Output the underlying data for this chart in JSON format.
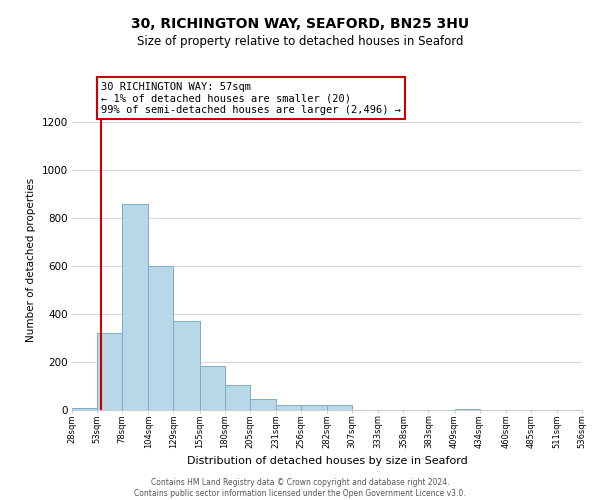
{
  "title": "30, RICHINGTON WAY, SEAFORD, BN25 3HU",
  "subtitle": "Size of property relative to detached houses in Seaford",
  "xlabel": "Distribution of detached houses by size in Seaford",
  "ylabel": "Number of detached properties",
  "bar_edges": [
    28,
    53,
    78,
    104,
    129,
    155,
    180,
    205,
    231,
    256,
    282,
    307,
    333,
    358,
    383,
    409,
    434,
    460,
    485,
    511,
    536
  ],
  "bar_heights": [
    10,
    320,
    860,
    600,
    370,
    185,
    105,
    45,
    20,
    20,
    20,
    0,
    0,
    0,
    0,
    5,
    0,
    0,
    0,
    0
  ],
  "bar_color": "#b8d8e8",
  "bar_edge_color": "#7baec8",
  "property_line_x": 57,
  "property_line_color": "#cc0000",
  "annotation_line1": "30 RICHINGTON WAY: 57sqm",
  "annotation_line2": "← 1% of detached houses are smaller (20)",
  "annotation_line3": "99% of semi-detached houses are larger (2,496) →",
  "annotation_box_color": "#ffffff",
  "annotation_box_edge_color": "#cc0000",
  "tick_labels": [
    "28sqm",
    "53sqm",
    "78sqm",
    "104sqm",
    "129sqm",
    "155sqm",
    "180sqm",
    "205sqm",
    "231sqm",
    "256sqm",
    "282sqm",
    "307sqm",
    "333sqm",
    "358sqm",
    "383sqm",
    "409sqm",
    "434sqm",
    "460sqm",
    "485sqm",
    "511sqm",
    "536sqm"
  ],
  "ylim": [
    0,
    1250
  ],
  "yticks": [
    0,
    200,
    400,
    600,
    800,
    1000,
    1200
  ],
  "footer_line1": "Contains HM Land Registry data © Crown copyright and database right 2024.",
  "footer_line2": "Contains public sector information licensed under the Open Government Licence v3.0.",
  "background_color": "#ffffff",
  "grid_color": "#d4d4e8"
}
